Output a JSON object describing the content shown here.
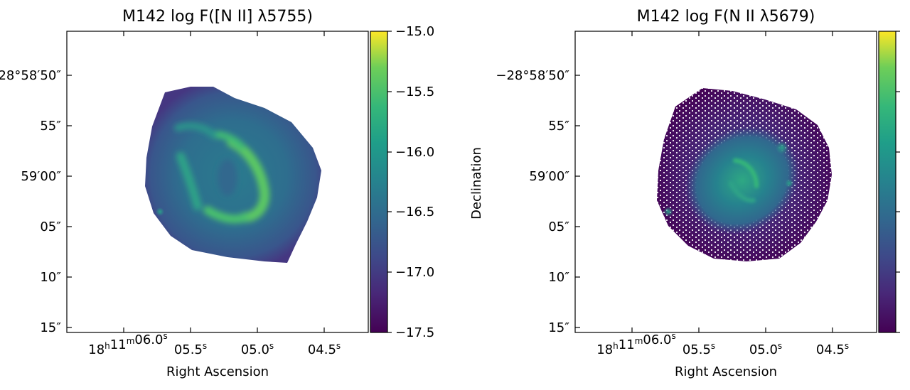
{
  "chart_data": [
    {
      "type": "heatmap",
      "title": "M142 log F([N II] λ5755)",
      "xlabel": "Right Ascension",
      "ylabel": "",
      "x_ticks": [
        "18h11m06.0s",
        "05.5s",
        "05.0s",
        "04.5s"
      ],
      "y_ticks": [
        "−28°58′50″",
        "55″",
        "59′00″",
        "05″",
        "10″",
        "15″"
      ],
      "colorbar": {
        "colormap": "viridis",
        "range": [
          -17.5,
          -15.0
        ],
        "ticks": [
          "−15.0",
          "−15.5",
          "−16.0",
          "−16.5",
          "−17.0",
          "−17.5"
        ]
      },
      "description_of_emission": "Bright shell/arc structure, peak log F ≈ −15.7"
    },
    {
      "type": "heatmap",
      "title": "M142 log F(N II λ5679)",
      "xlabel": "Right Ascension",
      "ylabel": "Declination",
      "x_ticks": [
        "18h11m06.0s",
        "05.5s",
        "05.0s",
        "04.5s"
      ],
      "y_ticks": [
        "−28°58′50″",
        "55″",
        "59′00″",
        "05″",
        "10″",
        "15″"
      ],
      "colorbar": {
        "colormap": "viridis",
        "range": [
          -17.5,
          -15.0
        ],
        "ticks": []
      }
    }
  ],
  "colors": {
    "viridis_low": "#440154",
    "viridis_mid": "#21918c",
    "viridis_high": "#fde725"
  }
}
